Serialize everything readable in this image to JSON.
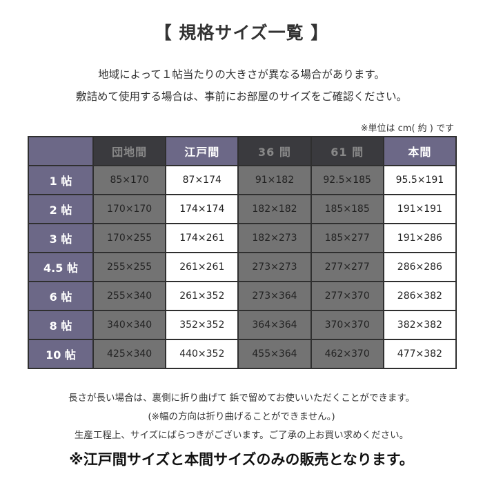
{
  "title": "【 規格サイズ一覧 】",
  "intro": {
    "line1": "地域によって１帖当たりの大きさが異なる場合があります。",
    "line2": "敷詰めて使用する場合は、事前にお部屋のサイズをご確認ください。"
  },
  "unit_note": "※単位は cm( 約 ) です",
  "table": {
    "corner": "",
    "headers": [
      "団地間",
      "江戸間",
      "36 間",
      "61 間",
      "本間"
    ],
    "rows": [
      {
        "label": "1 帖",
        "cells": [
          "85×170",
          "87×174",
          "91×182",
          "92.5×185",
          "95.5×191"
        ]
      },
      {
        "label": "2 帖",
        "cells": [
          "170×170",
          "174×174",
          "182×182",
          "185×185",
          "191×191"
        ]
      },
      {
        "label": "3 帖",
        "cells": [
          "170×255",
          "174×261",
          "182×273",
          "185×277",
          "191×286"
        ]
      },
      {
        "label": "4.5 帖",
        "cells": [
          "255×255",
          "261×261",
          "273×273",
          "277×277",
          "286×286"
        ]
      },
      {
        "label": "6 帖",
        "cells": [
          "255×340",
          "261×352",
          "273×364",
          "277×370",
          "286×382"
        ]
      },
      {
        "label": "8 帖",
        "cells": [
          "340×340",
          "352×352",
          "364×364",
          "370×370",
          "382×382"
        ]
      },
      {
        "label": "10 帖",
        "cells": [
          "425×340",
          "440×352",
          "455×364",
          "462×370",
          "477×382"
        ]
      }
    ]
  },
  "footer": {
    "line1": "長さが長い場合は、裏側に折り曲げて 鋲で留めてお使いいただくことができます。",
    "line2": "(※幅の方向は折り曲げることができません。)",
    "line3": "生産工程上、サイズにばらつきがございます。ご了承の上お買い求めください。",
    "notice": "※江戸間サイズと本間サイズのみの販売となります。"
  },
  "colors": {
    "header_purple": "#6c6887",
    "header_dark": "#3a3a3e",
    "cell_gray": "#737373",
    "cell_dark": "#5e5e5e",
    "cell_white": "#ffffff"
  }
}
